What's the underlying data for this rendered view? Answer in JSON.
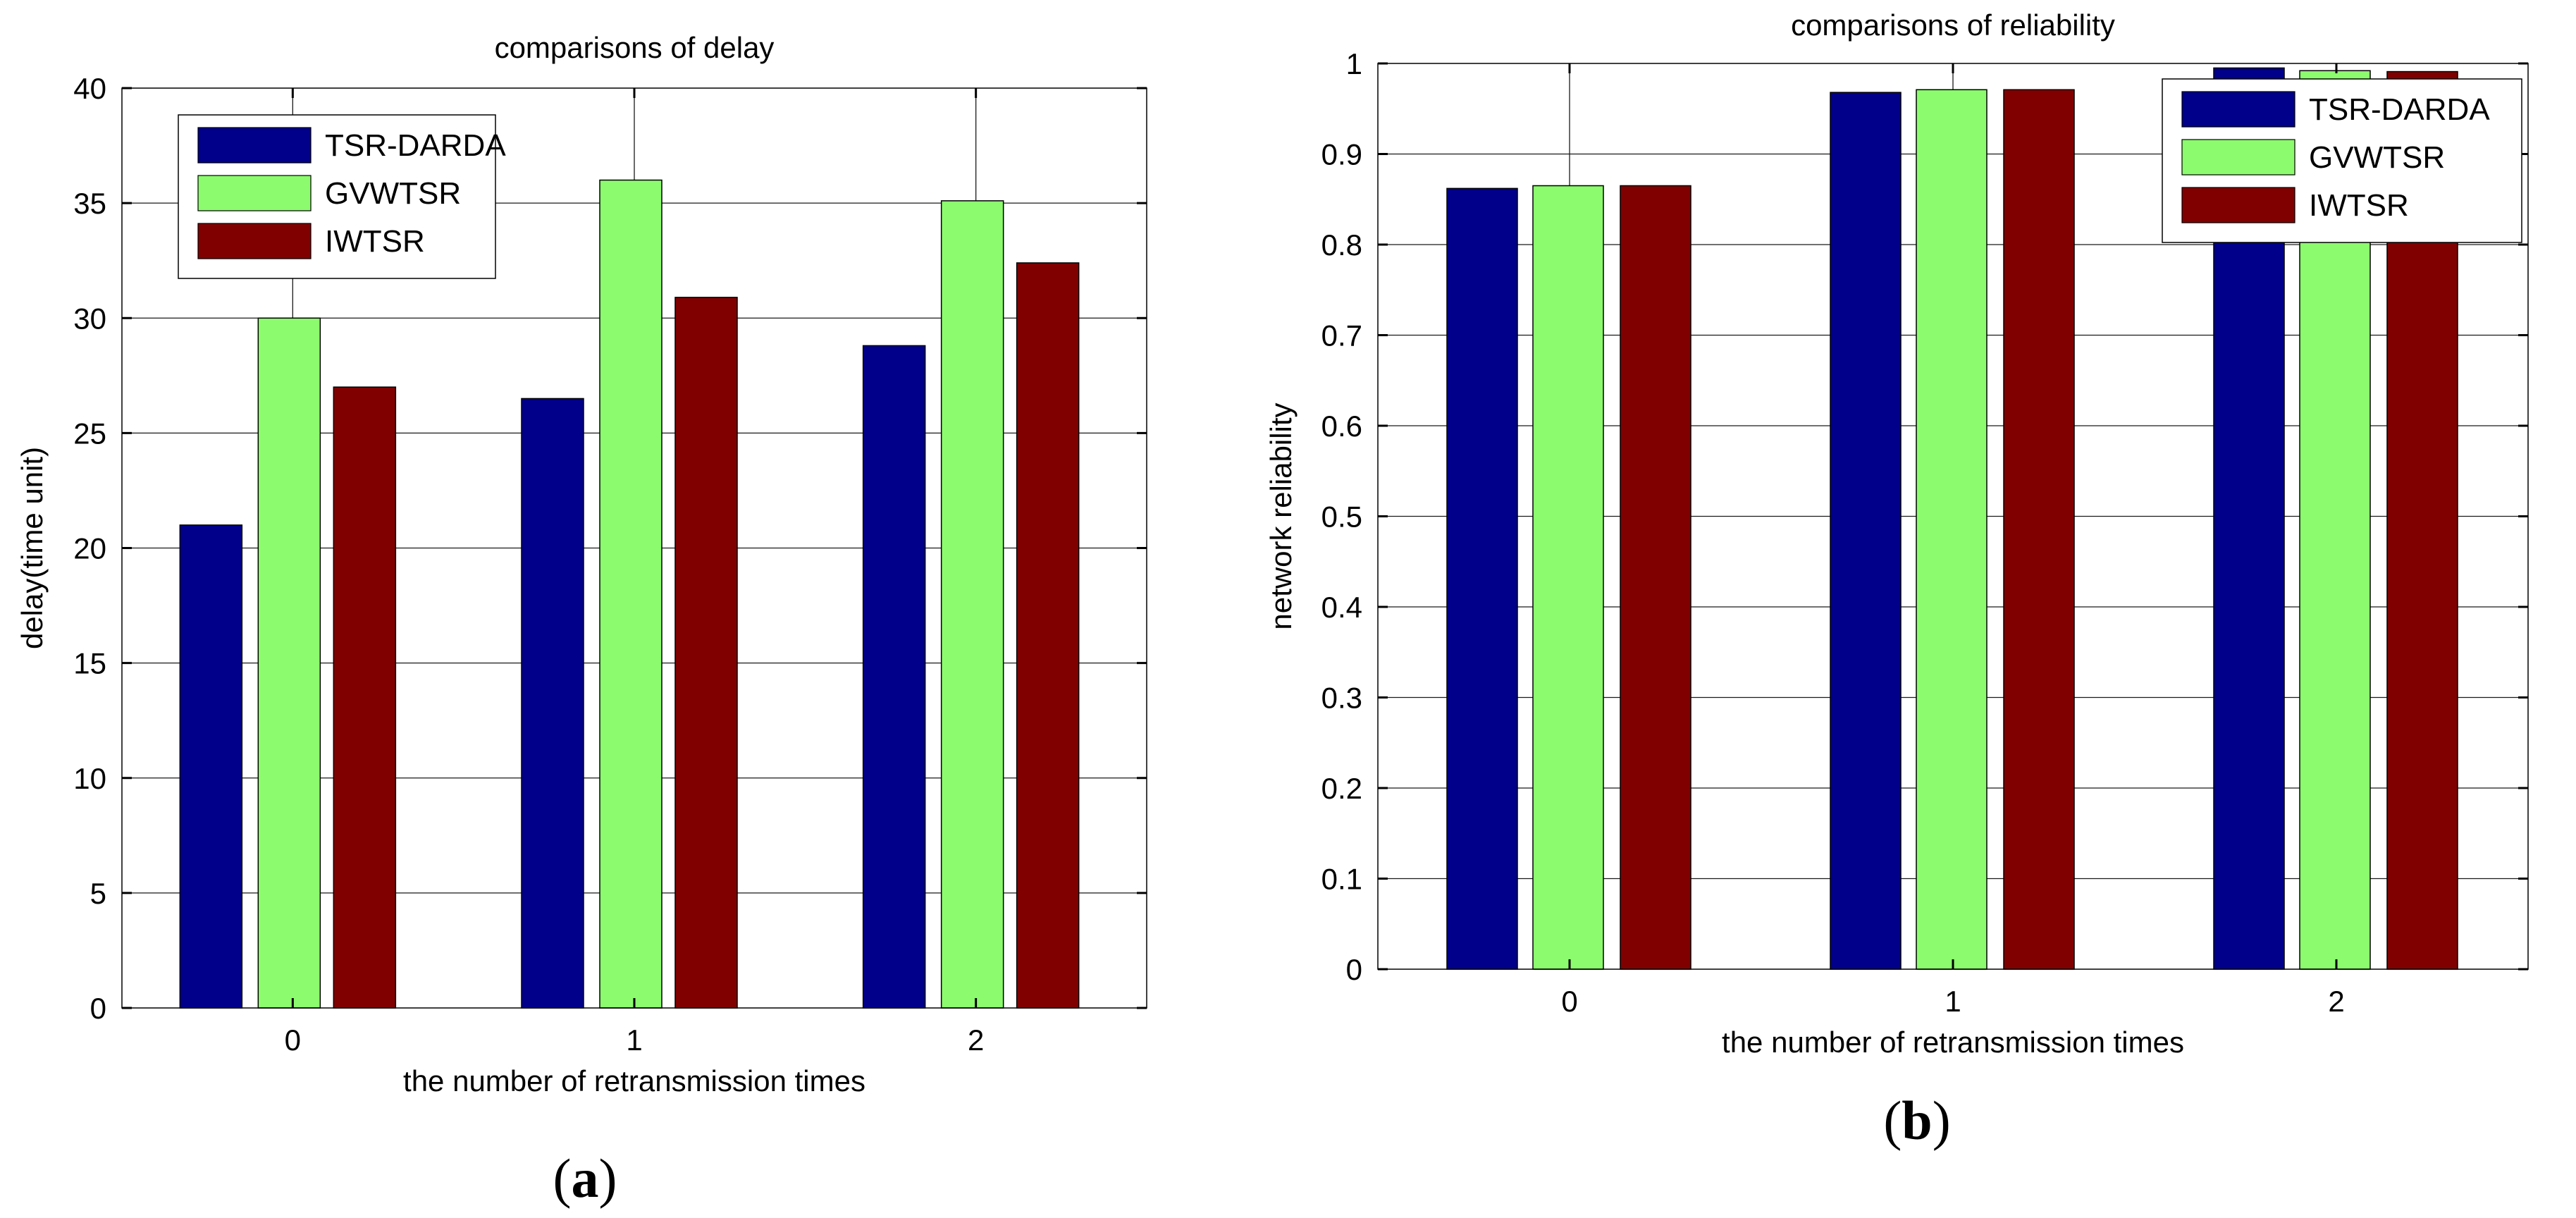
{
  "chart_data": [
    {
      "type": "bar",
      "title": "comparisons of delay",
      "xlabel": "the number of retransmission times",
      "ylabel": "delay(time unit)",
      "categories": [
        "0",
        "1",
        "2"
      ],
      "ylim": [
        0,
        40
      ],
      "yticks": [
        "0",
        "5",
        "10",
        "15",
        "20",
        "25",
        "30",
        "35",
        "40"
      ],
      "grid": true,
      "legend_position": "top-left",
      "series": [
        {
          "name": "TSR-DARDA",
          "color": "#00008b",
          "values": [
            21,
            26.5,
            28.8
          ]
        },
        {
          "name": "GVWTSR",
          "color": "#8cfc6e",
          "values": [
            30,
            36,
            35.1
          ]
        },
        {
          "name": "IWTSR",
          "color": "#800000",
          "values": [
            27,
            30.9,
            32.4
          ]
        }
      ],
      "caption_letter": "a"
    },
    {
      "type": "bar",
      "title": "comparisons of reliability",
      "xlabel": "the number of retransmission times",
      "ylabel": "network reliability",
      "categories": [
        "0",
        "1",
        "2"
      ],
      "ylim": [
        0,
        1
      ],
      "yticks": [
        "0",
        "0.1",
        "0.2",
        "0.3",
        "0.4",
        "0.5",
        "0.6",
        "0.7",
        "0.8",
        "0.9",
        "1"
      ],
      "grid": true,
      "legend_position": "top-right",
      "series": [
        {
          "name": "TSR-DARDA",
          "color": "#00008b",
          "values": [
            0.862,
            0.968,
            0.995
          ]
        },
        {
          "name": "GVWTSR",
          "color": "#8cfc6e",
          "values": [
            0.865,
            0.971,
            0.992
          ]
        },
        {
          "name": "IWTSR",
          "color": "#800000",
          "values": [
            0.865,
            0.971,
            0.991
          ]
        }
      ],
      "caption_letter": "b"
    }
  ]
}
